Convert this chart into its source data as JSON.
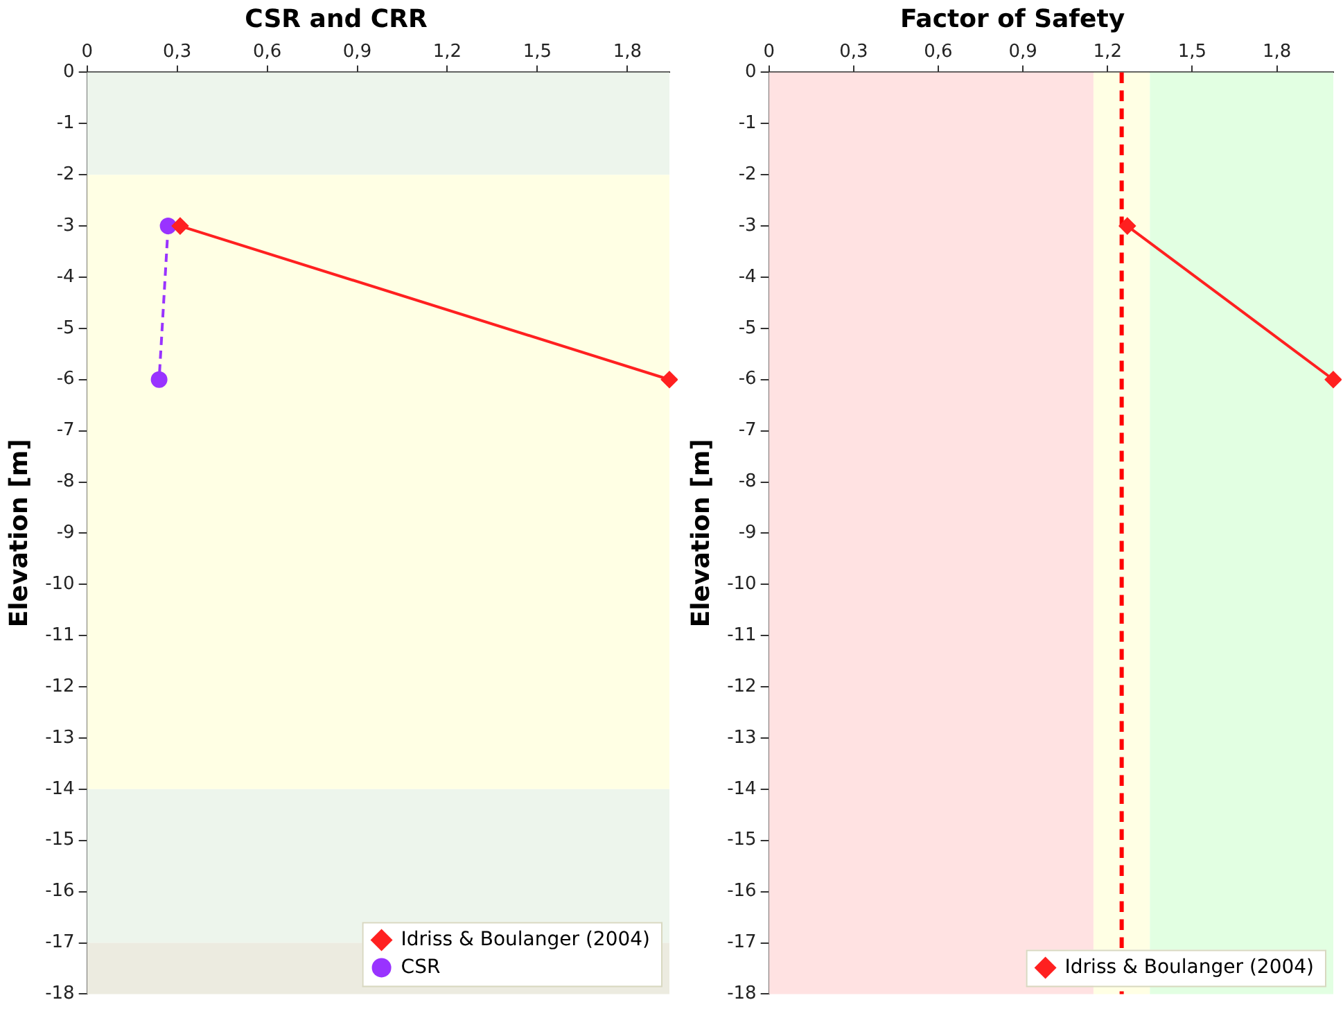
{
  "chart_data": [
    {
      "type": "line",
      "title": "CSR and CRR",
      "ylabel": "Elevation [m]",
      "xlim": [
        0,
        1.94
      ],
      "xticks": [
        0,
        {
          "value": 0.3,
          "label": "0,3"
        },
        {
          "value": 0.6,
          "label": "0,6"
        },
        {
          "value": 0.9,
          "label": "0,9"
        },
        {
          "value": 1.2,
          "label": "1,2"
        },
        {
          "value": 1.5,
          "label": "1,5"
        },
        {
          "value": 1.8,
          "label": "1,8"
        }
      ],
      "ylim": [
        -18,
        0
      ],
      "yticks": [
        0,
        -1,
        -2,
        -3,
        -4,
        -5,
        -6,
        -7,
        -8,
        -9,
        -10,
        -11,
        -12,
        -13,
        -14,
        -15,
        -16,
        -17,
        -18
      ],
      "grid": false,
      "legend": "bottom right",
      "bands": [
        {
          "axis": "y",
          "from": 0,
          "to": -2,
          "color": "#edf5ec"
        },
        {
          "axis": "y",
          "from": -2,
          "to": -14,
          "color": "#ffffe4"
        },
        {
          "axis": "y",
          "from": -14,
          "to": -17,
          "color": "#edf5ec"
        },
        {
          "axis": "y",
          "from": -17,
          "to": -18,
          "color": "#ecebe0"
        }
      ],
      "series": [
        {
          "name": "Idriss & Boulanger (2004)",
          "color": "#ff2020",
          "marker": "diamond",
          "line_style": "solid",
          "x": [
            0.31,
            1.94
          ],
          "values": [
            -3,
            -6
          ]
        },
        {
          "name": "CSR",
          "color": "#9933ff",
          "marker": "circle",
          "line_style": "dashed",
          "x": [
            0.27,
            0.24
          ],
          "values": [
            -3,
            -6
          ]
        }
      ]
    },
    {
      "type": "line",
      "title": "Factor of Safety",
      "ylabel": "Elevation [m]",
      "xlim": [
        0,
        2.0
      ],
      "xticks": [
        0,
        {
          "value": 0.3,
          "label": "0,3"
        },
        {
          "value": 0.6,
          "label": "0,6"
        },
        {
          "value": 0.9,
          "label": "0,9"
        },
        {
          "value": 1.2,
          "label": "1,2"
        },
        {
          "value": 1.5,
          "label": "1,5"
        },
        {
          "value": 1.8,
          "label": "1,8"
        }
      ],
      "ylim": [
        -18,
        0
      ],
      "yticks": [
        0,
        -1,
        -2,
        -3,
        -4,
        -5,
        -6,
        -7,
        -8,
        -9,
        -10,
        -11,
        -12,
        -13,
        -14,
        -15,
        -16,
        -17,
        -18
      ],
      "grid": false,
      "legend": "bottom right",
      "bands": [
        {
          "axis": "x",
          "from": 0,
          "to": 1.15,
          "color": "#ffe2e2"
        },
        {
          "axis": "x",
          "from": 1.15,
          "to": 1.35,
          "color": "#ffffe4"
        },
        {
          "axis": "x",
          "from": 1.35,
          "to": 2.0,
          "color": "#e2ffe2"
        }
      ],
      "ref_lines": [
        {
          "axis": "x",
          "value": 1.25,
          "color": "#ff0000",
          "line_style": "dashed"
        }
      ],
      "series": [
        {
          "name": "Idriss & Boulanger (2004)",
          "color": "#ff2020",
          "marker": "diamond",
          "line_style": "solid",
          "x": [
            1.27,
            2.0
          ],
          "values": [
            -3,
            -6
          ]
        }
      ]
    }
  ]
}
